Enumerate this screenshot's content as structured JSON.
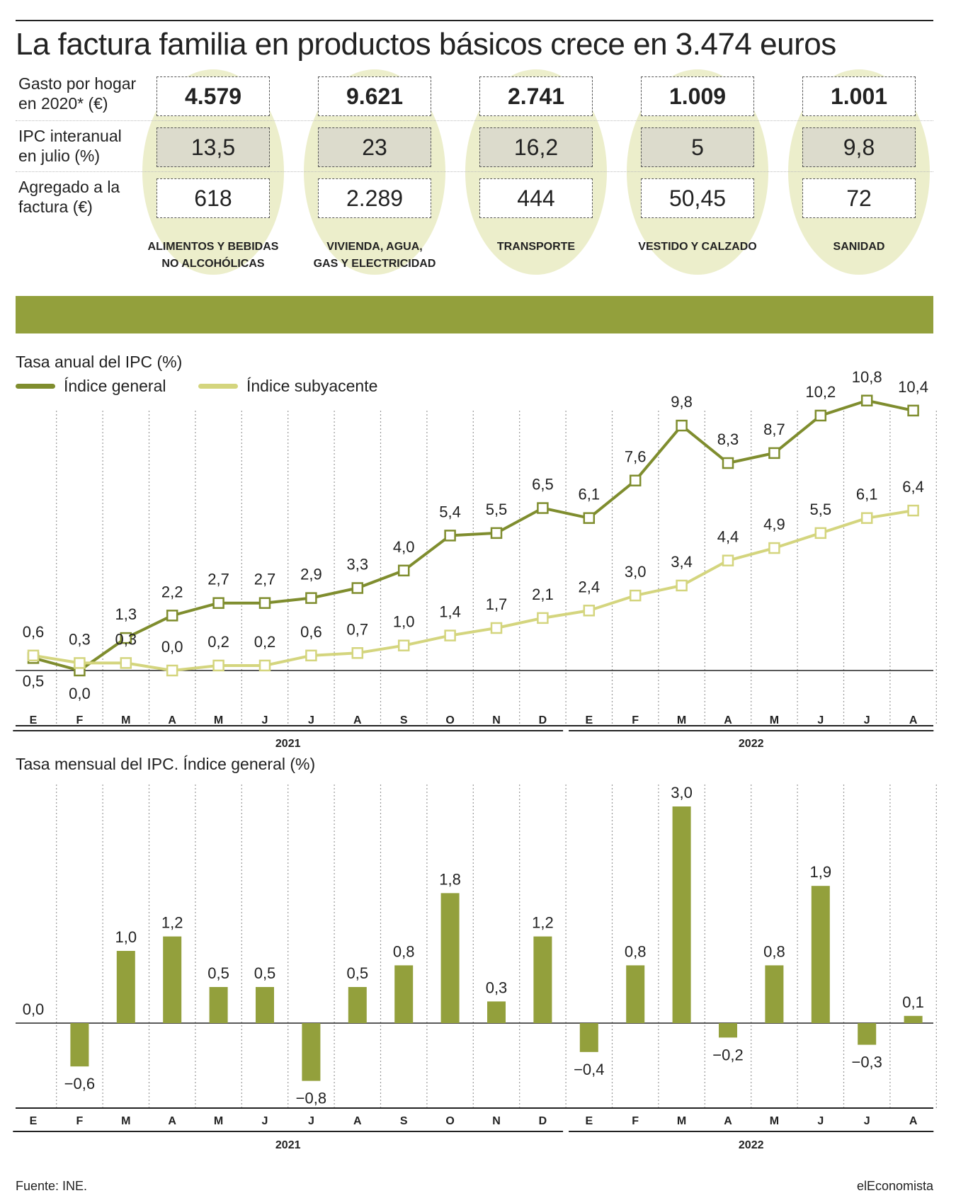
{
  "title": "La factura familia en productos básicos crece en 3.474 euros",
  "table": {
    "row_labels": [
      [
        "Gasto por hogar",
        "en 2020* (€)"
      ],
      [
        "IPC interanual",
        "en julio (%)"
      ],
      [
        "Agregado a la",
        "factura (€)"
      ]
    ],
    "columns": [
      {
        "category": [
          "ALIMENTOS Y BEBIDAS",
          "NO ALCOHÓLICAS"
        ],
        "gasto": "4.579",
        "ipc": "13,5",
        "agregado": "618"
      },
      {
        "category": [
          "VIVIENDA, AGUA,",
          "GAS Y ELECTRICIDAD"
        ],
        "gasto": "9.621",
        "ipc": "23",
        "agregado": "2.289"
      },
      {
        "category": [
          "TRANSPORTE",
          ""
        ],
        "gasto": "2.741",
        "ipc": "16,2",
        "agregado": "444"
      },
      {
        "category": [
          "VESTIDO Y CALZADO",
          ""
        ],
        "gasto": "1.009",
        "ipc": "5",
        "agregado": "50,45"
      },
      {
        "category": [
          "SANIDAD",
          ""
        ],
        "gasto": "1.001",
        "ipc": "9,8",
        "agregado": "72"
      }
    ]
  },
  "colors": {
    "general": "#7f8d2e",
    "subyacente": "#d4d57e",
    "bar": "#93a03c",
    "band": "#93a03c",
    "oval": "#eceecb",
    "gray_cell": "#dcdbcc"
  },
  "chart_data": [
    {
      "type": "line",
      "title": "Tasa anual del IPC (%)",
      "categories": [
        "E",
        "F",
        "M",
        "A",
        "M",
        "J",
        "J",
        "A",
        "S",
        "O",
        "N",
        "D",
        "E",
        "F",
        "M",
        "A",
        "M",
        "J",
        "J",
        "A"
      ],
      "years": [
        {
          "label": "2021",
          "from": 0,
          "to": 11
        },
        {
          "label": "2022",
          "from": 12,
          "to": 19
        }
      ],
      "series": [
        {
          "name": "Índice general",
          "values": [
            0.5,
            0.0,
            1.3,
            2.2,
            2.7,
            2.7,
            2.9,
            3.3,
            4.0,
            5.4,
            5.5,
            6.5,
            6.1,
            7.6,
            9.8,
            8.3,
            8.7,
            10.2,
            10.8,
            10.4
          ],
          "labels": [
            "0,5",
            "0,0",
            "1,3",
            "2,2",
            "2,7",
            "2,7",
            "2,9",
            "3,3",
            "4,0",
            "5,4",
            "5,5",
            "6,5",
            "6,1",
            "7,6",
            "9,8",
            "8,3",
            "8,7",
            "10,2",
            "10,8",
            "10,4"
          ]
        },
        {
          "name": "Índice subyacente",
          "values": [
            0.6,
            0.3,
            0.3,
            0.0,
            0.2,
            0.2,
            0.6,
            0.7,
            1.0,
            1.4,
            1.7,
            2.1,
            2.4,
            3.0,
            3.4,
            4.4,
            4.9,
            5.5,
            6.1,
            6.4
          ],
          "labels": [
            "0,6",
            "0,3",
            "0,3",
            "0,0",
            "0,2",
            "0,2",
            "0,6",
            "0,7",
            "1,0",
            "1,4",
            "1,7",
            "2,1",
            "2,4",
            "3,0",
            "3,4",
            "4,4",
            "4,9",
            "5,5",
            "6,1",
            "6,4"
          ]
        }
      ],
      "ylim": [
        -0.8,
        12.5
      ],
      "grid": "vertical-dotted",
      "legend": "top-left"
    },
    {
      "type": "bar",
      "title": "Tasa mensual del IPC. Índice general (%)",
      "categories": [
        "E",
        "F",
        "M",
        "A",
        "M",
        "J",
        "J",
        "A",
        "S",
        "O",
        "N",
        "D",
        "E",
        "F",
        "M",
        "A",
        "M",
        "J",
        "J",
        "A"
      ],
      "years": [
        {
          "label": "2021",
          "from": 0,
          "to": 11
        },
        {
          "label": "2022",
          "from": 12,
          "to": 19
        }
      ],
      "values": [
        0.0,
        -0.6,
        1.0,
        1.2,
        0.5,
        0.5,
        -0.8,
        0.5,
        0.8,
        1.8,
        0.3,
        1.2,
        -0.4,
        0.8,
        3.0,
        -0.2,
        0.8,
        1.9,
        -0.3,
        0.1
      ],
      "labels": [
        "0,0",
        "−0,6",
        "1,0",
        "1,2",
        "0,5",
        "0,5",
        "−0,8",
        "0,5",
        "0,8",
        "1,8",
        "0,3",
        "1,2",
        "−0,4",
        "0,8",
        "3,0",
        "−0,2",
        "0,8",
        "1,9",
        "−0,3",
        "0,1"
      ],
      "ylim": [
        -1.2,
        3.3
      ],
      "grid": "vertical-dotted"
    }
  ],
  "footer": {
    "source": "Fuente: INE.",
    "brand": "elEconomista"
  }
}
